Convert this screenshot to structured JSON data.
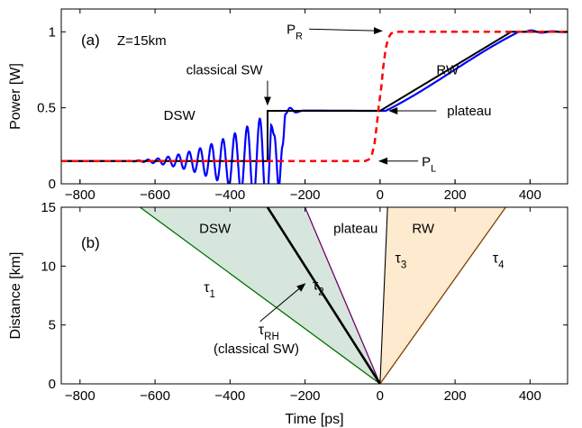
{
  "chart_data": [
    {
      "type": "line",
      "panel_label": "(a)",
      "annotation_z": "Z=15km",
      "xlabel": "",
      "ylabel": "Power [W]",
      "xlim": [
        -850,
        500
      ],
      "ylim": [
        0,
        1.15
      ],
      "xticks": [
        -800,
        -600,
        -400,
        -200,
        0,
        200,
        400
      ],
      "yticks": [
        0,
        0.5,
        1
      ],
      "ytick_labels": [
        "0",
        "0.5",
        "1"
      ],
      "colors": {
        "dsw": "#0000ff",
        "input": "#ff0000",
        "classical": "#000000"
      },
      "series": [
        {
          "role": "input-step-dashed",
          "x": [
            -850,
            -40,
            -30,
            -22,
            -15,
            -8,
            -4,
            0,
            4,
            8,
            15,
            22,
            30,
            40,
            500
          ],
          "y": [
            0.15,
            0.15,
            0.16,
            0.19,
            0.26,
            0.4,
            0.5,
            0.575,
            0.65,
            0.76,
            0.89,
            0.96,
            0.99,
            1.0,
            1.0
          ]
        },
        {
          "role": "classical-sw",
          "x": [
            -850,
            -300,
            -300,
            0,
            350,
            500
          ],
          "y": [
            0.15,
            0.15,
            0.48,
            0.48,
            1.0,
            1.0
          ]
        },
        {
          "role": "dsw-simulation",
          "osc_start": -700,
          "osc_end": -290,
          "trough_x": -270,
          "trough_y": -0.02,
          "base": 0.15,
          "amp_max": 0.33,
          "period_start": 24,
          "period_end": 34,
          "plateau": 0.48,
          "rw_start": 15,
          "rw_end": 370,
          "high": 1.0
        }
      ],
      "annotations": [
        {
          "text": "P",
          "sub": "R",
          "x": -45,
          "y": 1.0
        },
        {
          "text": "RW",
          "x": 180,
          "y": 0.72
        },
        {
          "text": "classical SW",
          "x": -415,
          "y": 0.72
        },
        {
          "text": "DSW",
          "x": -535,
          "y": 0.42
        },
        {
          "text": "plateau",
          "x": 150,
          "y": 0.48
        },
        {
          "text": "P",
          "sub": "L",
          "x": 15,
          "y": 0.15
        }
      ]
    },
    {
      "type": "line",
      "panel_label": "(b)",
      "xlabel": "Time [ps]",
      "ylabel": "Distance [km]",
      "xlim": [
        -850,
        500
      ],
      "ylim": [
        0,
        15
      ],
      "xticks": [
        -800,
        -600,
        -400,
        -200,
        0,
        200,
        400
      ],
      "xtick_labels": [
        "−800",
        "−600",
        "−400",
        "−200",
        "0",
        "200",
        "400"
      ],
      "yticks": [
        0,
        5,
        10,
        15
      ],
      "colors": {
        "dsw_fill": "#d7e6dc",
        "rw_fill": "#fdeacf",
        "tau1": "#007000",
        "tau2": "#700070",
        "tau_rh": "#000000",
        "tau3": "#000000",
        "tau4": "#804000"
      },
      "lines": [
        {
          "name": "τ1",
          "x_at_15km": -640
        },
        {
          "name": "τRH",
          "x_at_15km": -300
        },
        {
          "name": "τ2",
          "x_at_15km": -200
        },
        {
          "name": "τ3",
          "x_at_15km": 20
        },
        {
          "name": "τ4",
          "x_at_15km": 335
        }
      ],
      "labels": {
        "dsw": "DSW",
        "plateau": "plateau",
        "rw": "RW",
        "tau": "τ",
        "tau1_sub": "1",
        "tau2_sub": "2",
        "tau3_sub": "3",
        "tau4_sub": "4",
        "rh_sub": "RH",
        "classical": "(classical SW)"
      },
      "label_positions": {
        "dsw": [
          -440,
          12.8
        ],
        "plateau": [
          -65,
          12.8
        ],
        "rw": [
          115,
          12.8
        ],
        "tau1": [
          -470,
          7.8
        ],
        "tau2": [
          -180,
          8.0
        ],
        "tau3": [
          40,
          10.3
        ],
        "tau4": [
          300,
          10.3
        ],
        "tau_rh": [
          -310,
          4.2
        ],
        "classical": [
          -330,
          2.6
        ]
      },
      "arrow_rh": {
        "from": [
          -320,
          5.3
        ],
        "to": [
          -200,
          8.5
        ]
      }
    }
  ]
}
